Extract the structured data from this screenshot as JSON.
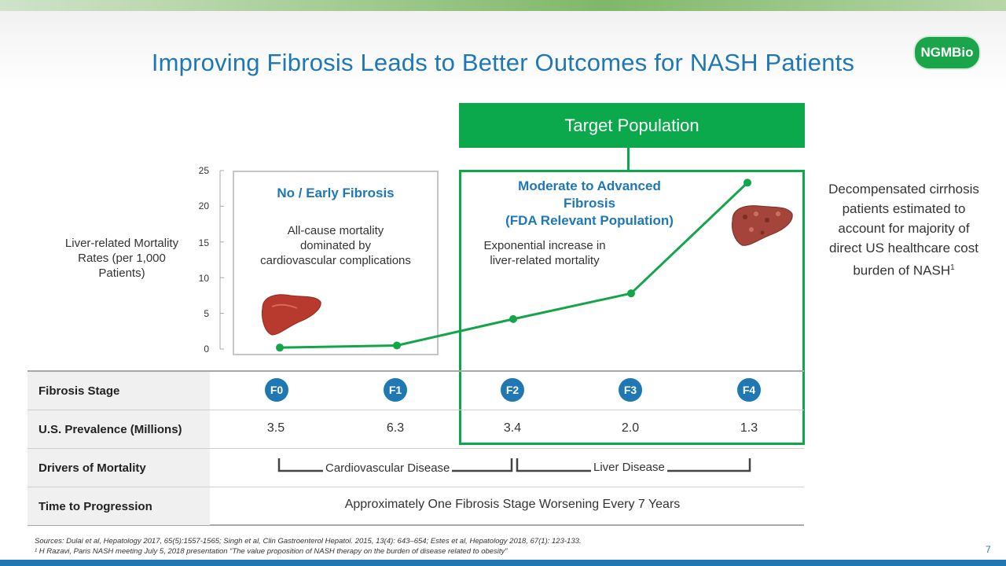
{
  "slide": {
    "title": "Improving Fibrosis Leads to Better Outcomes for NASH Patients",
    "logo_text": "NGMBio",
    "page_number": "7"
  },
  "target_population": {
    "label": "Target Population"
  },
  "chart_data": {
    "type": "line",
    "ylabel": "Liver-related Mortality Rates (per 1,000 Patients)",
    "yticks": [
      "25",
      "20",
      "15",
      "10",
      "5",
      "0"
    ],
    "ylim": [
      0,
      25
    ],
    "categories": [
      "F0",
      "F1",
      "F2",
      "F3",
      "F4"
    ],
    "series": [
      {
        "values": [
          0.2,
          0.5,
          4.2,
          7.8,
          23.3
        ],
        "color": "#13a54a"
      }
    ],
    "grid": false
  },
  "early_box": {
    "title": "No / Early Fibrosis",
    "text_lines": [
      "All-cause mortality",
      "dominated by",
      "cardiovascular complications"
    ]
  },
  "advanced_box": {
    "title_lines": [
      "Moderate to Advanced",
      "Fibrosis",
      "(FDA Relevant Population)"
    ],
    "text_lines": [
      "Exponential increase in",
      "liver-related mortality"
    ]
  },
  "right_note": {
    "lines": [
      "Decompensated cirrhosis",
      "patients estimated to",
      "account for majority of",
      "direct US healthcare cost"
    ],
    "last_line": "burden of NASH",
    "superscript": "1"
  },
  "table": {
    "rows": {
      "stage_label": "Fibrosis Stage",
      "prevalence_label": "U.S. Prevalence (Millions)",
      "drivers_label": "Drivers of Mortality",
      "time_label": "Time to Progression"
    },
    "stages": [
      "F0",
      "F1",
      "F2",
      "F3",
      "F4"
    ],
    "prevalence": [
      "3.5",
      "6.3",
      "3.4",
      "2.0",
      "1.3"
    ],
    "drivers": {
      "cardio": "Cardiovascular Disease",
      "liver": "Liver Disease"
    },
    "time": "Approximately One Fibrosis Stage Worsening Every 7 Years"
  },
  "sources": {
    "line1": "Sources:  Dulai et al, Hepatology 2017, 65(5):1557-1565; Singh et al, Clin Gastroenterol Hepatol. 2015, 13(4): 643–654;  Estes et al, Hepatology 2018, 67(1): 123-133.",
    "line2": "¹  H Razavi, Paris NASH meeting July 5, 2018 presentation “The value proposition of NASH therapy on the burden of disease related to obesity”"
  },
  "colors": {
    "accent_blue": "#1f78b4",
    "green": "#0ca84c"
  }
}
